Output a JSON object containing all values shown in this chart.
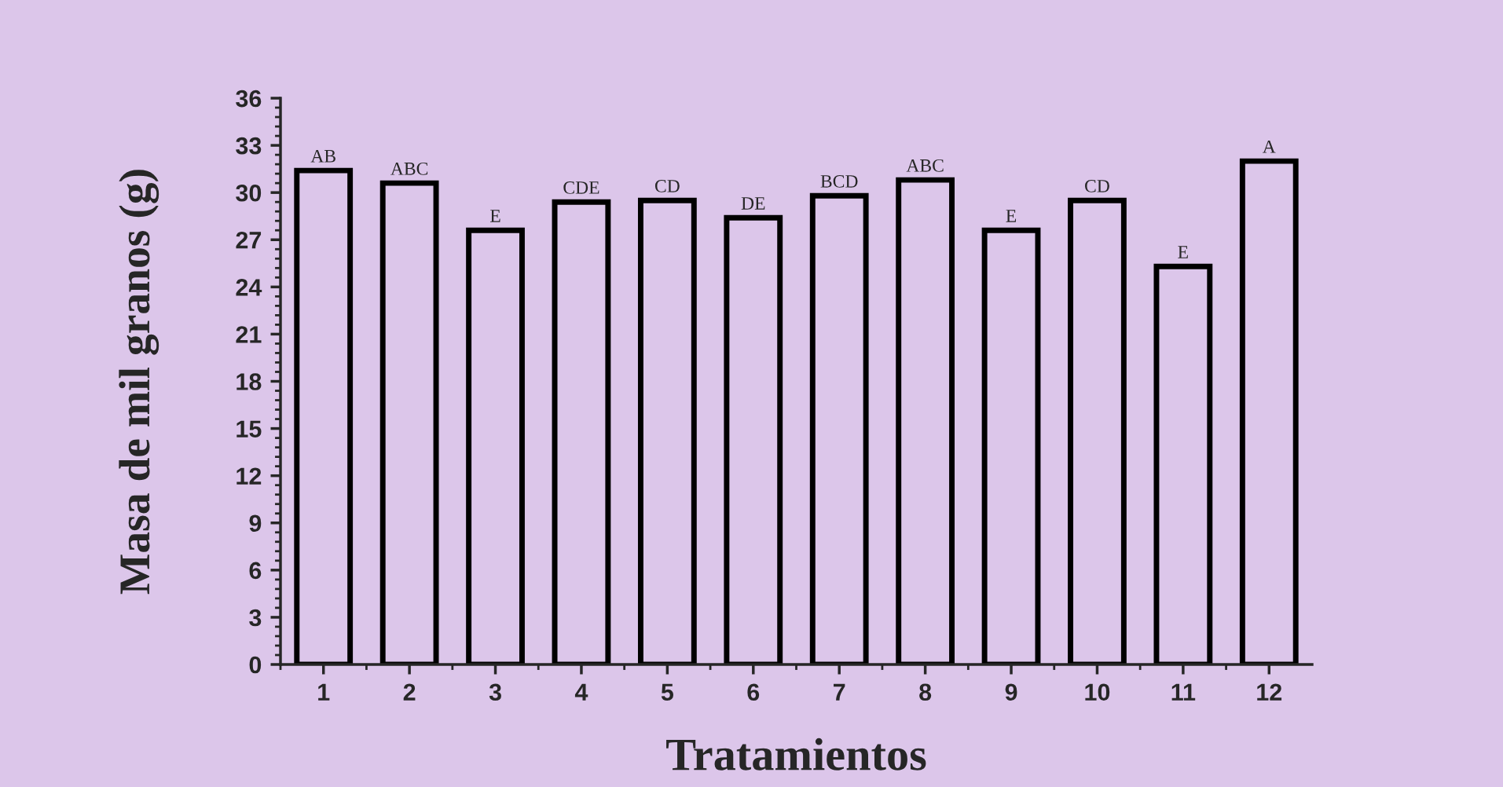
{
  "chart_data": {
    "type": "bar",
    "xlabel": "Tratamientos",
    "ylabel": "Masa de mil granos (g)",
    "categories": [
      "1",
      "2",
      "3",
      "4",
      "5",
      "6",
      "7",
      "8",
      "9",
      "10",
      "11",
      "12"
    ],
    "values": [
      31.4,
      30.6,
      27.6,
      29.4,
      29.5,
      28.4,
      29.8,
      30.8,
      27.6,
      29.5,
      25.3,
      32.0
    ],
    "color": "#000000",
    "ylim": [
      0,
      36
    ],
    "yticks": [
      0,
      3,
      6,
      9,
      12,
      15,
      18,
      21,
      24,
      27,
      30,
      33,
      36
    ],
    "grid": false,
    "legend": false,
    "annotations": [
      {
        "text": "AB",
        "x": "1",
        "y": 31.4
      },
      {
        "text": "ABC",
        "x": "2",
        "y": 30.6
      },
      {
        "text": "E",
        "x": "3",
        "y": 27.6
      },
      {
        "text": "CDE",
        "x": "4",
        "y": 29.4
      },
      {
        "text": "CD",
        "x": "5",
        "y": 29.5
      },
      {
        "text": "DE",
        "x": "6",
        "y": 28.4
      },
      {
        "text": "BCD",
        "x": "7",
        "y": 29.8
      },
      {
        "text": "ABC",
        "x": "8",
        "y": 30.8
      },
      {
        "text": "E",
        "x": "9",
        "y": 27.6
      },
      {
        "text": "CD",
        "x": "10",
        "y": 29.5
      },
      {
        "text": "E",
        "x": "11",
        "y": 25.3
      },
      {
        "text": "A",
        "x": "12",
        "y": 32.0
      }
    ]
  }
}
